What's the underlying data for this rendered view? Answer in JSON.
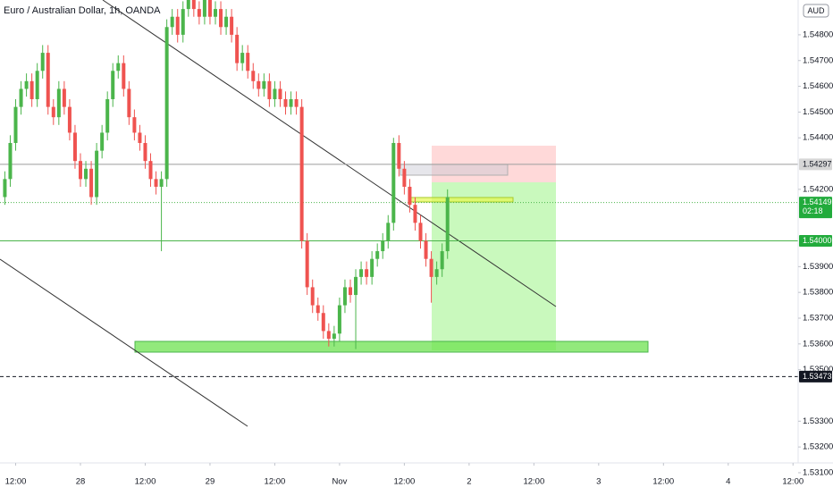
{
  "chart_data": {
    "type": "candlestick",
    "title": "Euro / Australian Dollar, 1h, OANDA",
    "currency": "AUD",
    "up_color": "#4bb54b",
    "down_color": "#ef5350",
    "x": [
      -14,
      -13,
      -12,
      -11,
      -10,
      -9,
      -8,
      -7,
      -6,
      -5,
      -4,
      -3,
      -2,
      -1,
      0,
      1,
      2,
      3,
      4,
      5,
      6,
      7,
      8,
      9,
      10,
      11,
      12,
      13,
      14,
      15,
      16,
      17,
      18,
      19,
      20,
      21,
      22,
      23,
      24,
      25,
      26,
      27,
      28,
      29,
      30,
      31,
      32,
      33,
      34,
      35,
      36,
      37,
      38,
      39,
      40,
      41,
      42,
      43,
      44,
      45,
      46,
      47,
      48,
      49,
      50,
      51,
      52,
      53,
      54,
      55,
      56,
      57,
      58,
      59,
      60,
      61,
      62,
      63,
      64,
      65,
      66,
      67,
      68
    ],
    "open": [
      1.5417,
      1.5424,
      1.5438,
      1.5452,
      1.5459,
      1.5462,
      1.5455,
      1.5466,
      1.5473,
      1.5452,
      1.5448,
      1.5459,
      1.5452,
      1.5442,
      1.5431,
      1.5424,
      1.5428,
      1.5417,
      1.5435,
      1.5442,
      1.5455,
      1.5466,
      1.5469,
      1.5459,
      1.5448,
      1.5442,
      1.5438,
      1.5431,
      1.5424,
      1.5421,
      1.5424,
      1.5483,
      1.5487,
      1.548,
      1.549,
      1.5494,
      1.549,
      1.5487,
      1.5494,
      1.5487,
      1.549,
      1.5483,
      1.5487,
      1.548,
      1.5469,
      1.5473,
      1.5466,
      1.5462,
      1.5459,
      1.5462,
      1.5455,
      1.5459,
      1.5455,
      1.5452,
      1.5455,
      1.5452,
      1.54,
      1.5382,
      1.5375,
      1.5372,
      1.5365,
      1.5362,
      1.5364,
      1.5375,
      1.5382,
      1.5379,
      1.5386,
      1.5389,
      1.5386,
      1.5393,
      1.5396,
      1.54,
      1.5407,
      1.5438,
      1.5428,
      1.5421,
      1.5414,
      1.5407,
      1.54,
      1.5393,
      1.5386,
      1.5389,
      1.5396
    ],
    "high": [
      1.5427,
      1.5441,
      1.5455,
      1.5462,
      1.5465,
      1.5465,
      1.5469,
      1.5476,
      1.5476,
      1.5455,
      1.5462,
      1.5462,
      1.5455,
      1.5445,
      1.5434,
      1.5431,
      1.5431,
      1.5438,
      1.5445,
      1.5458,
      1.5469,
      1.5472,
      1.5472,
      1.5462,
      1.5451,
      1.5445,
      1.5441,
      1.5434,
      1.5427,
      1.5427,
      1.5486,
      1.549,
      1.549,
      1.5493,
      1.5497,
      1.5497,
      1.5493,
      1.5497,
      1.5497,
      1.5493,
      1.5493,
      1.549,
      1.549,
      1.5483,
      1.5476,
      1.5476,
      1.5469,
      1.5465,
      1.5465,
      1.5465,
      1.5462,
      1.5462,
      1.5458,
      1.5458,
      1.5458,
      1.5455,
      1.5403,
      1.5385,
      1.5378,
      1.5375,
      1.5368,
      1.5367,
      1.5378,
      1.5385,
      1.5385,
      1.5389,
      1.5392,
      1.5392,
      1.5396,
      1.5399,
      1.5403,
      1.541,
      1.544,
      1.5441,
      1.5431,
      1.5424,
      1.5417,
      1.541,
      1.5403,
      1.5396,
      1.5392,
      1.5399,
      1.542
    ],
    "low": [
      1.5414,
      1.5421,
      1.5435,
      1.5449,
      1.5456,
      1.5452,
      1.5452,
      1.5463,
      1.5449,
      1.5445,
      1.5445,
      1.5449,
      1.5439,
      1.5428,
      1.5421,
      1.5421,
      1.5414,
      1.5414,
      1.5432,
      1.5439,
      1.5452,
      1.5463,
      1.5456,
      1.5445,
      1.5439,
      1.5435,
      1.5428,
      1.5421,
      1.5418,
      1.5396,
      1.5421,
      1.548,
      1.5477,
      1.5477,
      1.5487,
      1.5487,
      1.5484,
      1.5484,
      1.5484,
      1.5484,
      1.548,
      1.548,
      1.5477,
      1.5466,
      1.5466,
      1.5463,
      1.5459,
      1.5456,
      1.5456,
      1.5452,
      1.5452,
      1.5452,
      1.5449,
      1.5449,
      1.5449,
      1.5397,
      1.5379,
      1.5372,
      1.5369,
      1.5362,
      1.5359,
      1.5359,
      1.5361,
      1.5372,
      1.5376,
      1.5358,
      1.5383,
      1.5383,
      1.5383,
      1.539,
      1.5393,
      1.5397,
      1.5404,
      1.5425,
      1.5418,
      1.5411,
      1.5404,
      1.5397,
      1.539,
      1.5376,
      1.5383,
      1.5386,
      1.5393
    ],
    "close": [
      1.5424,
      1.5438,
      1.5452,
      1.5459,
      1.5462,
      1.5455,
      1.5466,
      1.5473,
      1.5452,
      1.5448,
      1.5459,
      1.5452,
      1.5442,
      1.5431,
      1.5424,
      1.5428,
      1.5417,
      1.5435,
      1.5442,
      1.5455,
      1.5466,
      1.5469,
      1.5459,
      1.5448,
      1.5442,
      1.5438,
      1.5431,
      1.5424,
      1.5421,
      1.5424,
      1.5483,
      1.5487,
      1.548,
      1.549,
      1.5494,
      1.549,
      1.5487,
      1.5494,
      1.5487,
      1.549,
      1.5483,
      1.5487,
      1.548,
      1.5469,
      1.5473,
      1.5466,
      1.5462,
      1.5459,
      1.5462,
      1.5455,
      1.5459,
      1.5455,
      1.5452,
      1.5455,
      1.5452,
      1.54,
      1.5382,
      1.5375,
      1.5372,
      1.5365,
      1.5362,
      1.5364,
      1.5375,
      1.5382,
      1.5379,
      1.5386,
      1.5389,
      1.5386,
      1.5393,
      1.5396,
      1.54,
      1.5407,
      1.5438,
      1.5428,
      1.5421,
      1.5414,
      1.5407,
      1.54,
      1.5393,
      1.5386,
      1.5389,
      1.5396,
      1.5417
    ],
    "xlim": [
      -14.9,
      132.95
    ],
    "xticks": [
      {
        "value": -12,
        "label": "12:00"
      },
      {
        "value": 0,
        "label": "28"
      },
      {
        "value": 12,
        "label": "12:00"
      },
      {
        "value": 24,
        "label": "29"
      },
      {
        "value": 36,
        "label": "12:00"
      },
      {
        "value": 48,
        "label": "Nov"
      },
      {
        "value": 60,
        "label": "12:00"
      },
      {
        "value": 72,
        "label": "2"
      },
      {
        "value": 84,
        "label": "12:00"
      },
      {
        "value": 96,
        "label": "3"
      },
      {
        "value": 108,
        "label": "12:00"
      },
      {
        "value": 120,
        "label": "4"
      },
      {
        "value": 132,
        "label": "12:00"
      }
    ],
    "ylim": [
      1.53138,
      1.54935
    ],
    "yticks": [
      {
        "value": 1.548,
        "label": "1.54800"
      },
      {
        "value": 1.547,
        "label": "1.54700"
      },
      {
        "value": 1.546,
        "label": "1.54600"
      },
      {
        "value": 1.545,
        "label": "1.54500"
      },
      {
        "value": 1.544,
        "label": "1.54400"
      },
      {
        "value": 1.542,
        "label": "1.54200"
      },
      {
        "value": 1.539,
        "label": "1.53900"
      },
      {
        "value": 1.538,
        "label": "1.53800"
      },
      {
        "value": 1.537,
        "label": "1.53700"
      },
      {
        "value": 1.536,
        "label": "1.53600"
      },
      {
        "value": 1.535,
        "label": "1.53500"
      },
      {
        "value": 1.533,
        "label": "1.53300"
      },
      {
        "value": 1.532,
        "label": "1.53200"
      },
      {
        "value": 1.531,
        "label": "1.53100"
      }
    ],
    "price_tags": [
      {
        "value": 1.54297,
        "label": "1.54297",
        "color": "#d6d6d6",
        "text_color": "#131722",
        "line_color": "#9e9e9e",
        "line_style": "solid"
      },
      {
        "value": 1.54149,
        "label": "1.54149",
        "countdown": "02:18",
        "color": "#22ab3c",
        "text_color": "#ffffff",
        "line_color": "#4bb54b",
        "line_style": "dotted"
      },
      {
        "value": 1.54,
        "label": "1.54000",
        "color": "#22ab3c",
        "text_color": "#ffffff",
        "line_color": "#4bb54b",
        "line_style": "solid"
      },
      {
        "value": 1.53473,
        "label": "1.53473",
        "color": "#131722",
        "text_color": "#ffffff",
        "line_color": "#131722",
        "line_style": "dashed"
      }
    ]
  }
}
